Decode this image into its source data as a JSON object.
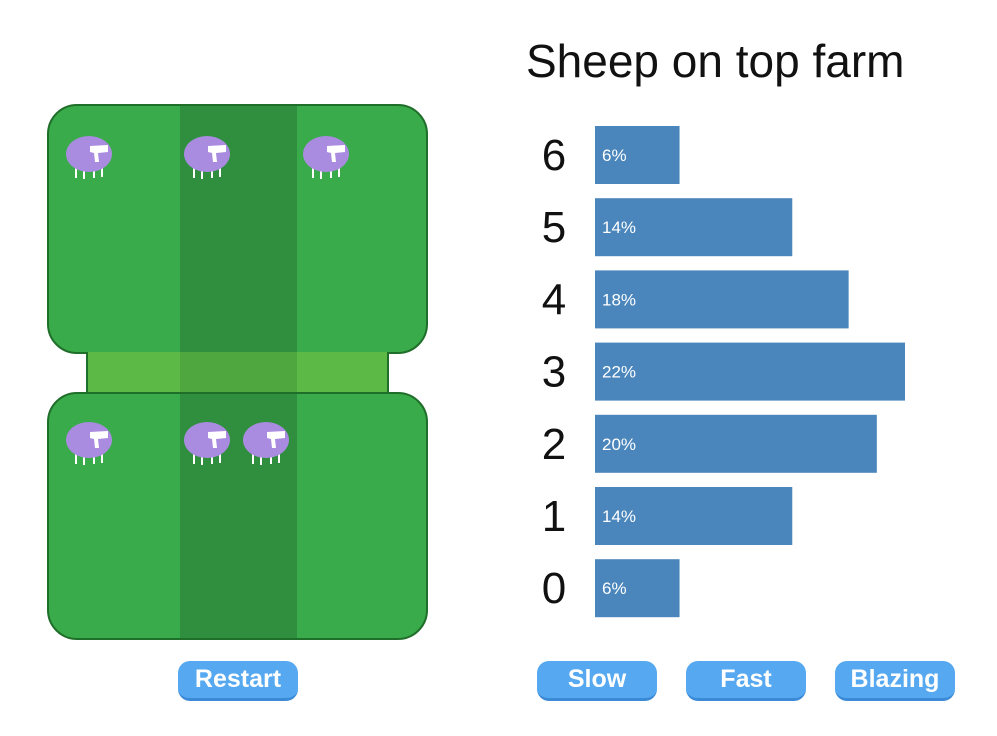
{
  "chart_data": {
    "type": "bar",
    "orientation": "horizontal",
    "title": "Sheep on top farm",
    "categories": [
      "6",
      "5",
      "4",
      "3",
      "2",
      "1",
      "0"
    ],
    "values": [
      6,
      14,
      18,
      22,
      20,
      14,
      6
    ],
    "value_labels": [
      "6%",
      "14%",
      "18%",
      "22%",
      "20%",
      "14%",
      "6%"
    ],
    "xlim": [
      0,
      22
    ],
    "bar_color": "#4a86bb",
    "label_color": "#ffffff",
    "grid": false
  },
  "farm": {
    "top_sheep_count": 3,
    "bottom_sheep_count": 3,
    "grass_color": "#3aab4a",
    "sheep_color": "#a98be0"
  },
  "buttons": {
    "restart": "Restart",
    "slow": "Slow",
    "fast": "Fast",
    "blazing": "Blazing"
  },
  "colors": {
    "button": "#56a8f0",
    "button_text": "#ffffff"
  },
  "icons": {
    "sheep": "sheep-icon"
  }
}
